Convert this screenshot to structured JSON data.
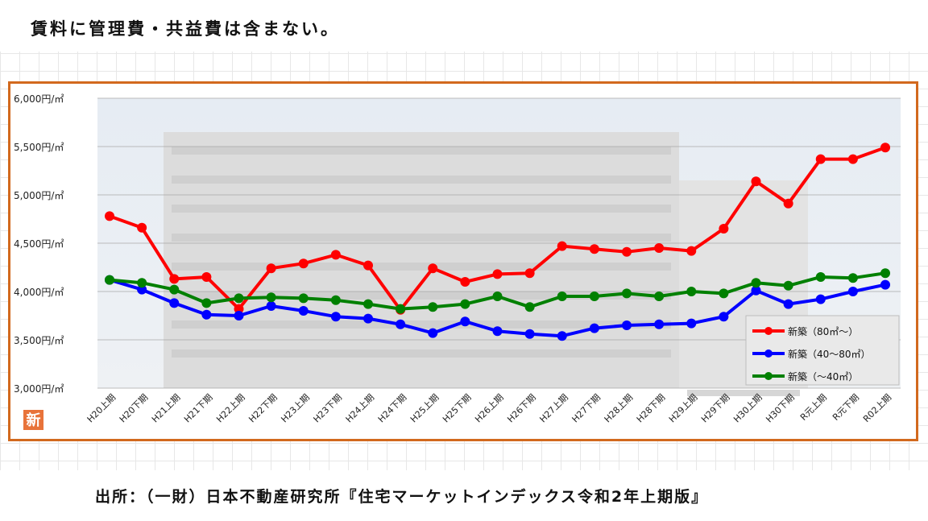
{
  "note": "賃料に管理費・共益費は含まない。",
  "source": "出所：（一財）日本不動産研究所『住宅マーケットインデックス令和2年上期版』",
  "badge": "新",
  "colors": {
    "frame": "#d2691e",
    "badge": "#e8733a",
    "s1": "#ff0000",
    "s2": "#0000ff",
    "s3": "#008000"
  },
  "chart_data": {
    "type": "line",
    "title": "",
    "xlabel": "",
    "ylabel": "",
    "ylim": [
      3000,
      6000
    ],
    "yticks": [
      {
        "value": 6000,
        "label": "6,000円/㎡"
      },
      {
        "value": 5500,
        "label": "5,500円/㎡"
      },
      {
        "value": 5000,
        "label": "5,000円/㎡"
      },
      {
        "value": 4500,
        "label": "4,500円/㎡"
      },
      {
        "value": 4000,
        "label": "4,000円/㎡"
      },
      {
        "value": 3500,
        "label": "3,500円/㎡"
      },
      {
        "value": 3000,
        "label": "3,000円/㎡"
      }
    ],
    "categories": [
      "H20上期",
      "H20下期",
      "H21上期",
      "H21下期",
      "H22上期",
      "H22下期",
      "H23上期",
      "H23下期",
      "H24上期",
      "H24下期",
      "H25上期",
      "H25下期",
      "H26上期",
      "H26下期",
      "H27上期",
      "H27下期",
      "H28上期",
      "H28下期",
      "H29上期",
      "H29下期",
      "H30上期",
      "H30下期",
      "R元上期",
      "R元下期",
      "R02上期"
    ],
    "grid": true,
    "legend_position": "bottom-right",
    "series": [
      {
        "name": "新築（80㎡～）",
        "color": "#ff0000",
        "values": [
          4780,
          4660,
          4130,
          4150,
          3820,
          4240,
          4290,
          4380,
          4270,
          3810,
          4240,
          4100,
          4180,
          4190,
          4470,
          4440,
          4410,
          4450,
          4420,
          4650,
          5140,
          4910,
          5370,
          5370,
          5490
        ]
      },
      {
        "name": "新築（40～80㎡）",
        "color": "#0000ff",
        "values": [
          4120,
          4020,
          3880,
          3760,
          3750,
          3850,
          3800,
          3740,
          3720,
          3660,
          3570,
          3690,
          3590,
          3560,
          3540,
          3620,
          3650,
          3660,
          3670,
          3740,
          4010,
          3870,
          3920,
          4000,
          4070
        ]
      },
      {
        "name": "新築（～40㎡）",
        "color": "#008000",
        "values": [
          4120,
          4090,
          4020,
          3880,
          3930,
          3940,
          3930,
          3910,
          3870,
          3820,
          3840,
          3870,
          3950,
          3840,
          3950,
          3950,
          3980,
          3950,
          4000,
          3980,
          4090,
          4060,
          4150,
          4140,
          4190
        ]
      }
    ]
  }
}
